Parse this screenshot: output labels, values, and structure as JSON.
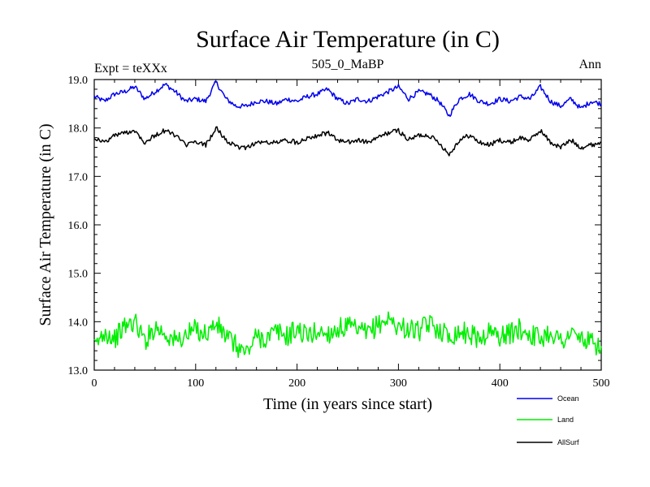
{
  "chart_data": {
    "type": "line",
    "title": "Surface Air Temperature (in C)",
    "subtitle": "505_0_MaBP",
    "experiment_label": "Expt = teXXx",
    "period_label": "Ann",
    "xlabel": "Time (in years since start)",
    "ylabel": "Surface Air Temperature (in C)",
    "xlim": [
      0,
      500
    ],
    "ylim": [
      13.0,
      19.0
    ],
    "x_ticks": [
      0,
      100,
      200,
      300,
      400,
      500
    ],
    "x_tick_labels": [
      "0",
      "100",
      "200",
      "300",
      "400",
      "500"
    ],
    "y_ticks": [
      13.0,
      14.0,
      15.0,
      16.0,
      17.0,
      18.0,
      19.0
    ],
    "y_tick_labels": [
      "13.0",
      "14.0",
      "15.0",
      "16.0",
      "17.0",
      "18.0",
      "19.0"
    ],
    "grid": false,
    "legend_position": "bottom-right",
    "x": [
      0,
      10,
      20,
      30,
      40,
      50,
      60,
      70,
      80,
      90,
      100,
      110,
      120,
      130,
      140,
      150,
      160,
      170,
      180,
      190,
      200,
      210,
      220,
      230,
      240,
      250,
      260,
      270,
      280,
      290,
      300,
      310,
      320,
      330,
      340,
      350,
      360,
      370,
      380,
      390,
      400,
      410,
      420,
      430,
      440,
      450,
      460,
      470,
      480,
      490,
      500
    ],
    "series": [
      {
        "name": "Ocean",
        "color": "#0000ee",
        "values": [
          18.65,
          18.55,
          18.7,
          18.75,
          18.85,
          18.6,
          18.75,
          18.9,
          18.75,
          18.55,
          18.6,
          18.55,
          18.95,
          18.6,
          18.45,
          18.45,
          18.55,
          18.55,
          18.5,
          18.6,
          18.55,
          18.65,
          18.7,
          18.8,
          18.6,
          18.5,
          18.6,
          18.55,
          18.65,
          18.75,
          18.85,
          18.6,
          18.75,
          18.7,
          18.55,
          18.25,
          18.6,
          18.7,
          18.55,
          18.5,
          18.6,
          18.55,
          18.65,
          18.6,
          18.85,
          18.55,
          18.45,
          18.6,
          18.4,
          18.55,
          18.5
        ]
      },
      {
        "name": "Land",
        "color": "#00ee00",
        "values": [
          13.45,
          13.8,
          13.65,
          13.9,
          14.0,
          13.6,
          13.9,
          13.75,
          13.6,
          13.7,
          13.85,
          13.75,
          13.95,
          13.7,
          13.5,
          13.35,
          13.7,
          13.65,
          13.8,
          13.7,
          13.85,
          13.7,
          13.8,
          13.75,
          13.85,
          13.9,
          13.8,
          13.75,
          13.95,
          14.05,
          13.9,
          13.85,
          13.8,
          13.95,
          13.85,
          13.7,
          13.8,
          13.75,
          13.65,
          13.8,
          13.7,
          13.75,
          13.85,
          13.75,
          13.65,
          13.8,
          13.6,
          13.75,
          13.65,
          13.55,
          13.5
        ]
      },
      {
        "name": "AllSurf",
        "color": "#000000",
        "values": [
          17.8,
          17.7,
          17.85,
          17.9,
          17.95,
          17.7,
          17.85,
          17.95,
          17.85,
          17.65,
          17.7,
          17.65,
          18.0,
          17.75,
          17.6,
          17.6,
          17.7,
          17.7,
          17.7,
          17.75,
          17.7,
          17.8,
          17.85,
          17.9,
          17.75,
          17.7,
          17.75,
          17.7,
          17.8,
          17.9,
          17.95,
          17.75,
          17.85,
          17.85,
          17.7,
          17.45,
          17.75,
          17.85,
          17.7,
          17.65,
          17.75,
          17.7,
          17.8,
          17.75,
          17.95,
          17.7,
          17.6,
          17.75,
          17.6,
          17.65,
          17.7
        ]
      }
    ]
  }
}
